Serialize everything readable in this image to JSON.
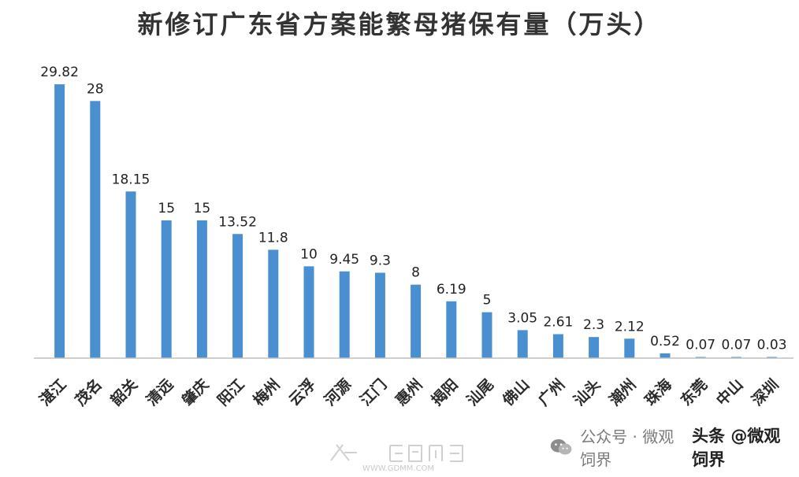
{
  "chart_data": {
    "type": "bar",
    "title": "新修订广东省方案能繁母猪保有量（万头）",
    "categories": [
      "湛江",
      "茂名",
      "韶关",
      "清远",
      "肇庆",
      "阳江",
      "梅州",
      "云浮",
      "河源",
      "江门",
      "惠州",
      "揭阳",
      "汕尾",
      "佛山",
      "广州",
      "汕头",
      "潮州",
      "珠海",
      "东莞",
      "中山",
      "深圳"
    ],
    "values": [
      29.82,
      28,
      18.15,
      15,
      15,
      13.52,
      11.8,
      10,
      9.45,
      9.3,
      8,
      6.19,
      5,
      3.05,
      2.61,
      2.3,
      2.12,
      0.52,
      0.07,
      0.07,
      0.03
    ],
    "value_labels": [
      "29.82",
      "28",
      "18.15",
      "15",
      "15",
      "13.52",
      "11.8",
      "10",
      "9.45",
      "9.3",
      "8",
      "6.19",
      "5",
      "3.05",
      "2.61",
      "2.3",
      "2.12",
      "0.52",
      "0.07",
      "0.07",
      "0.03"
    ],
    "ylim": [
      0,
      30
    ],
    "grid": false,
    "legend": "none",
    "bar_color": "#4a8fd0"
  },
  "watermark": {
    "account": "公众号 · 微观饲界",
    "toutiao": "头条 @微观饲界",
    "site_url": "WWW.GDMM.COM",
    "wechat_icon": "wechat-icon"
  }
}
